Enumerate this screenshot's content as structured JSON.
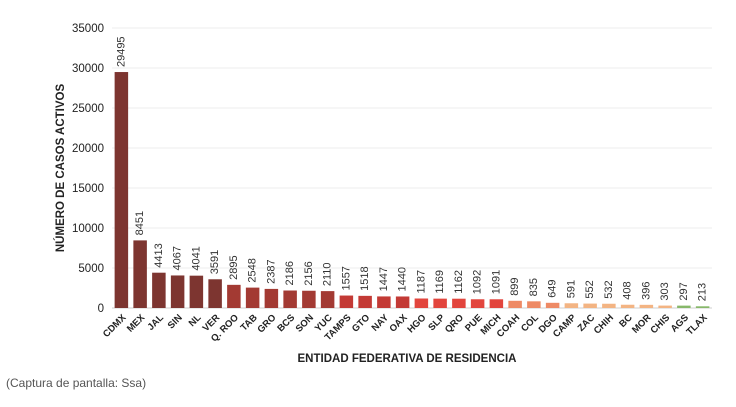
{
  "caption": "(Captura de pantalla: Ssa)",
  "chart_data": {
    "type": "bar",
    "title": "",
    "xlabel": "ENTIDAD FEDERATIVA DE RESIDENCIA",
    "ylabel": "NÚMERO DE CASOS ACTIVOS",
    "ylim": [
      0,
      35000
    ],
    "yticks": [
      "0",
      "5000",
      "10000",
      "15000",
      "20000",
      "25000",
      "30000",
      "35000"
    ],
    "grid": true,
    "categories": [
      "CDMX",
      "MEX",
      "JAL",
      "SIN",
      "NL",
      "VER",
      "Q. ROO",
      "TAB",
      "GRO",
      "BCS",
      "SON",
      "YUC",
      "TAMPS",
      "GTO",
      "NAY",
      "OAX",
      "HGO",
      "SLP",
      "QRO",
      "PUE",
      "MICH",
      "COAH",
      "COL",
      "DGO",
      "CAMP",
      "ZAC",
      "CHIH",
      "BC",
      "MOR",
      "CHIS",
      "AGS",
      "TLAX"
    ],
    "values": [
      29495,
      8451,
      4413,
      4067,
      4041,
      3591,
      2895,
      2548,
      2387,
      2186,
      2156,
      2110,
      1557,
      1518,
      1447,
      1440,
      1187,
      1169,
      1162,
      1092,
      1091,
      899,
      835,
      649,
      591,
      552,
      532,
      408,
      396,
      303,
      297,
      213
    ],
    "value_labels": [
      "29495",
      "8451",
      "4413",
      "4067",
      "4041",
      "3591",
      "2895",
      "2548",
      "2387",
      "2186",
      "2156",
      "2110",
      "1557",
      "1518",
      "1447",
      "1440",
      "1187",
      "1169",
      "1162",
      "1092",
      "1091",
      "899",
      "835",
      "649",
      "591",
      "552",
      "532",
      "408",
      "396",
      "303",
      "297",
      "213"
    ],
    "colors": [
      "#7d3530",
      "#7d3530",
      "#7d3530",
      "#7d3530",
      "#7d3530",
      "#7d3530",
      "#a33a33",
      "#a33a33",
      "#a33a33",
      "#a33a33",
      "#a33a33",
      "#a33a33",
      "#c33a35",
      "#c33a35",
      "#c33a35",
      "#c33a35",
      "#e2453d",
      "#e2453d",
      "#e2453d",
      "#e2453d",
      "#e2453d",
      "#ee8a65",
      "#ee8a65",
      "#ee8a65",
      "#f3b483",
      "#f3b483",
      "#f3b483",
      "#f3b483",
      "#f3b483",
      "#f3b483",
      "#87b86a",
      "#87b86a"
    ]
  }
}
